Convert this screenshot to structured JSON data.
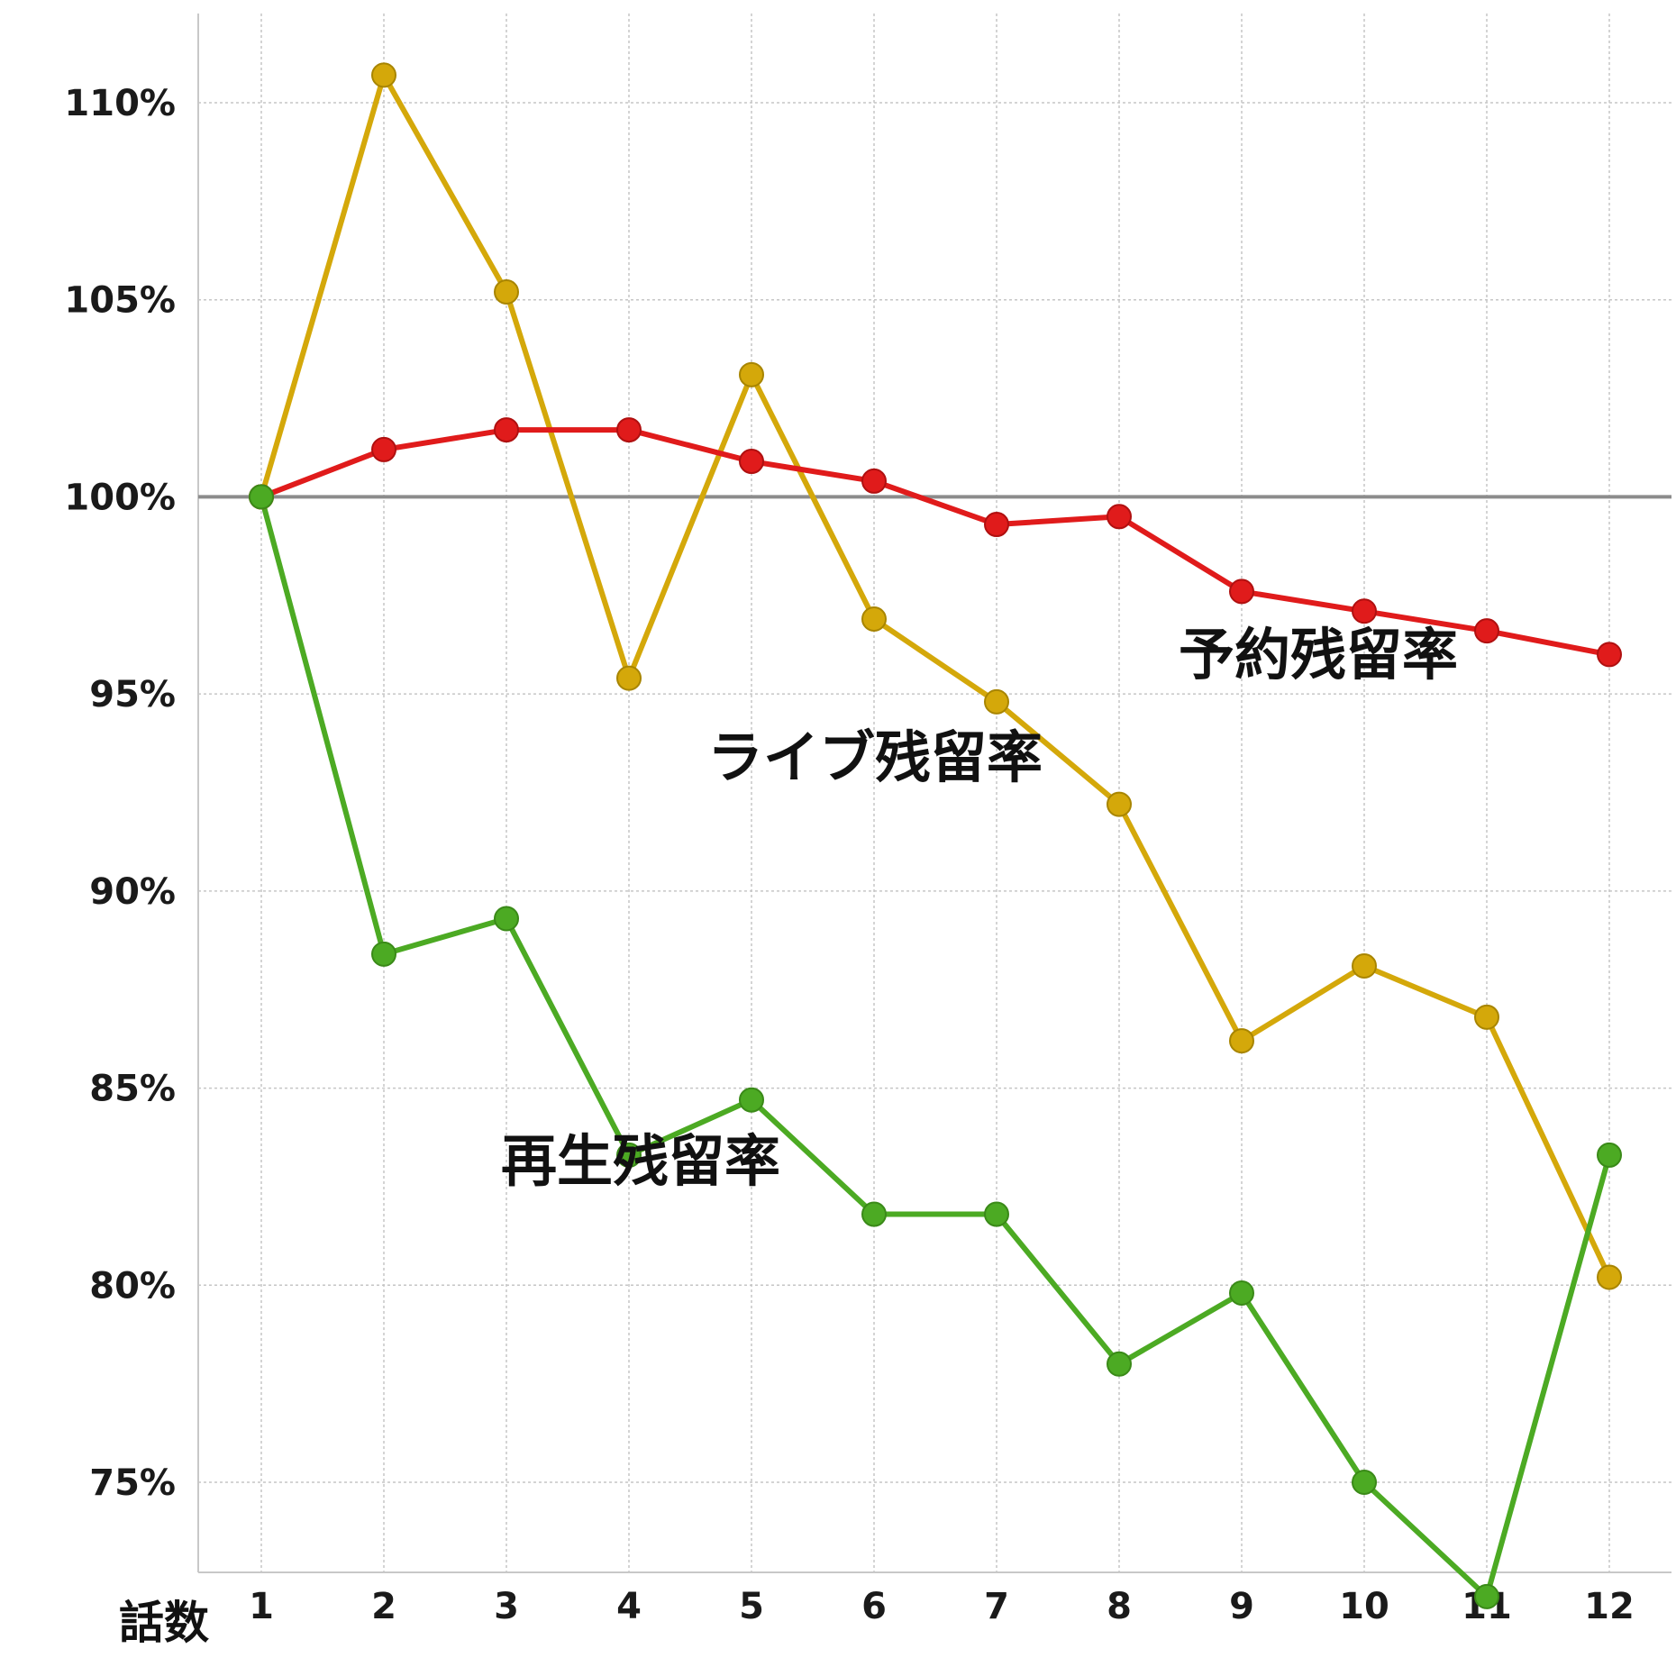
{
  "chart_data": {
    "type": "line",
    "xlabel": "話数",
    "ylabel": "",
    "x": [
      1,
      2,
      3,
      4,
      5,
      6,
      7,
      8,
      9,
      10,
      11,
      12
    ],
    "x_tick_labels": [
      "1",
      "2",
      "3",
      "4",
      "5",
      "6",
      "7",
      "8",
      "9",
      "10",
      "11",
      "12"
    ],
    "ylim": [
      70.5,
      112.5
    ],
    "y_ticks": [
      75,
      80,
      85,
      90,
      95,
      100,
      105,
      110
    ],
    "y_tick_labels": [
      "75%",
      "80%",
      "85%",
      "90%",
      "95%",
      "100%",
      "105%",
      "110%"
    ],
    "reference_line": {
      "value": 100,
      "color": "#8c8c8c"
    },
    "grid": true,
    "series": [
      {
        "name": "ライブ残留率",
        "color": "#d4a80a",
        "values": [
          100,
          110.7,
          105.2,
          95.4,
          103.1,
          96.9,
          94.8,
          92.2,
          86.2,
          88.1,
          86.8,
          80.2
        ]
      },
      {
        "name": "予約残留率",
        "color": "#e01b1b",
        "values": [
          100,
          101.2,
          101.7,
          101.7,
          100.9,
          100.4,
          99.3,
          99.5,
          97.6,
          97.1,
          96.6,
          96.0
        ]
      },
      {
        "name": "再生残留率",
        "color": "#4caa23",
        "values": [
          100,
          88.4,
          89.3,
          83.3,
          84.7,
          81.8,
          81.8,
          78.0,
          79.8,
          75.0,
          72.1,
          83.3
        ]
      }
    ]
  }
}
